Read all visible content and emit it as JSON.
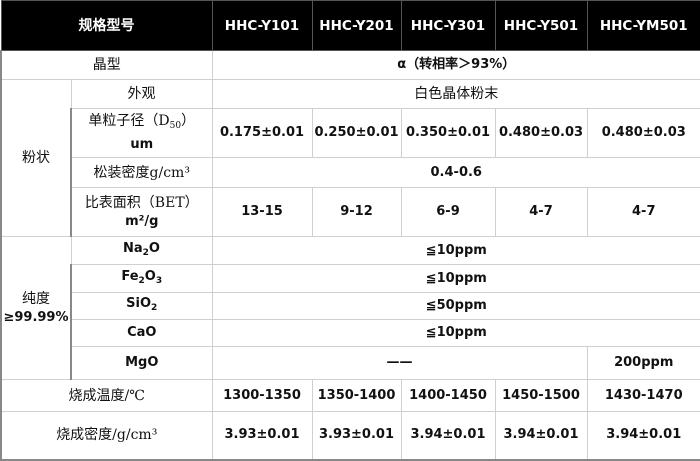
{
  "header": {
    "spec_label": "规格型号",
    "models": [
      "HHC-Y101",
      "HHC-Y201",
      "HHC-Y301",
      "HHC-Y501",
      "HHC-YM501"
    ]
  },
  "crystal": {
    "label": "晶型",
    "value": "α（转相率＞93%）"
  },
  "powder": {
    "group_label": "粉状",
    "appearance": {
      "label": "外观",
      "value": "白色晶体粉末"
    },
    "particle_size": {
      "label_pre": "单粒子径（D",
      "label_sub": "50",
      "label_post": "）",
      "label_unit": "um",
      "values": [
        "0.175±0.01",
        "0.250±0.01",
        "0.350±0.01",
        "0.480±0.03",
        "0.480±0.03"
      ]
    },
    "bulk_density": {
      "label": "松装密度g/cm³",
      "value": "0.4-0.6"
    },
    "bet": {
      "label": "比表面积（BET）",
      "label_unit": "m²/g",
      "values": [
        "13-15",
        "9-12",
        "6-9",
        "4-7",
        "4-7"
      ]
    }
  },
  "purity": {
    "group_label": "纯度",
    "group_value": "≥99.99%",
    "na2o": {
      "label": "Na",
      "sub1": "2",
      "label2": "O",
      "value": "≦10ppm"
    },
    "fe2o3": {
      "label": "Fe",
      "sub1": "2",
      "label2": "O",
      "sub2": "3",
      "value": "≦10ppm"
    },
    "sio2": {
      "label": "SiO",
      "sub1": "2",
      "value": "≦50ppm"
    },
    "cao": {
      "label": "CaO",
      "value": "≦10ppm"
    },
    "mgo": {
      "label": "MgO",
      "value_common": "——",
      "value_last": "200ppm"
    }
  },
  "firing_temp": {
    "label": "烧成温度/℃",
    "values": [
      "1300-1350",
      "1350-1400",
      "1400-1450",
      "1450-1500",
      "1430-1470"
    ]
  },
  "firing_density": {
    "label": "烧成密度/g/cm³",
    "values": [
      "3.93±0.01",
      "3.93±0.01",
      "3.94±0.01",
      "3.94±0.01",
      "3.94±0.01"
    ]
  }
}
